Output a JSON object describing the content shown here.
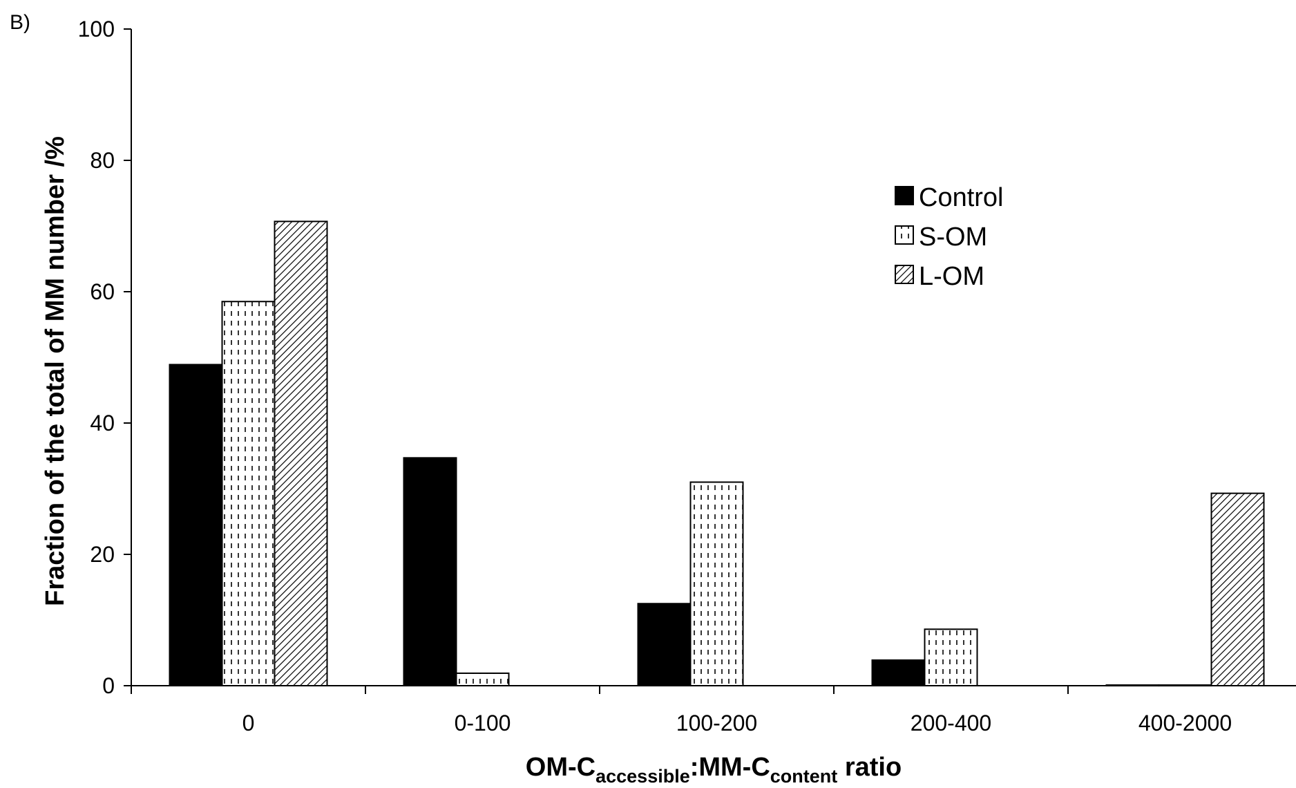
{
  "panel_label": "B)",
  "chart_data": {
    "type": "bar",
    "title": "",
    "xlabel": {
      "parts": [
        {
          "text": "OM-C",
          "sub": false
        },
        {
          "text": "accessible",
          "sub": true
        },
        {
          "text": ":MM-C",
          "sub": false
        },
        {
          "text": "content",
          "sub": true
        },
        {
          "text": " ratio",
          "sub": false
        }
      ]
    },
    "ylabel": "Fraction of the total of MM number /%",
    "ylim": [
      0,
      100
    ],
    "yticks": [
      "0",
      "20",
      "40",
      "60",
      "80",
      "100"
    ],
    "categories": [
      "0",
      "0-100",
      "100-200",
      "200-400",
      "400-2000"
    ],
    "series": [
      {
        "name": "Control",
        "pattern": "solid",
        "values": [
          48.9,
          34.7,
          12.5,
          3.9,
          0.1
        ]
      },
      {
        "name": "S-OM",
        "pattern": "dashed-vertical",
        "values": [
          58.5,
          1.9,
          31.0,
          8.6,
          0.1
        ]
      },
      {
        "name": "L-OM",
        "pattern": "diagonal-hatch",
        "values": [
          70.7,
          0,
          0,
          0,
          29.3
        ]
      }
    ],
    "legend_position": "upper-right",
    "grid": false
  }
}
